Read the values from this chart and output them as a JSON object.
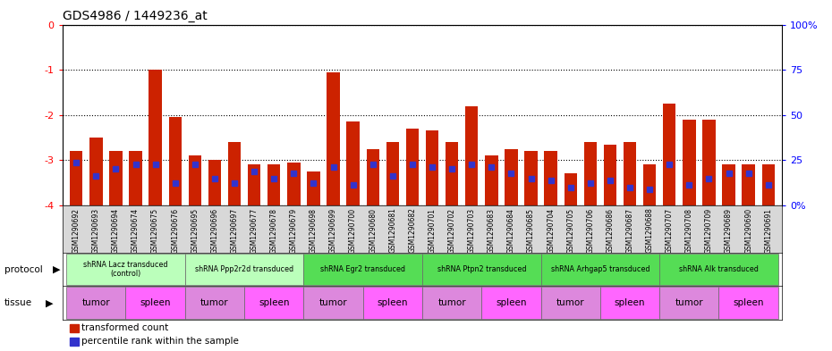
{
  "title": "GDS4986 / 1449236_at",
  "samples": [
    "GSM1290692",
    "GSM1290693",
    "GSM1290694",
    "GSM1290674",
    "GSM1290675",
    "GSM1290676",
    "GSM1290695",
    "GSM1290696",
    "GSM1290697",
    "GSM1290677",
    "GSM1290678",
    "GSM1290679",
    "GSM1290698",
    "GSM1290699",
    "GSM1290700",
    "GSM1290680",
    "GSM1290681",
    "GSM1290682",
    "GSM1290701",
    "GSM1290702",
    "GSM1290703",
    "GSM1290683",
    "GSM1290684",
    "GSM1290685",
    "GSM1290704",
    "GSM1290705",
    "GSM1290706",
    "GSM1290686",
    "GSM1290687",
    "GSM1290688",
    "GSM1290707",
    "GSM1290708",
    "GSM1290709",
    "GSM1290689",
    "GSM1290690",
    "GSM1290691"
  ],
  "red_tops": [
    -2.8,
    -2.5,
    -2.8,
    -2.8,
    -1.0,
    -2.05,
    -2.9,
    -3.0,
    -2.6,
    -3.1,
    -3.1,
    -3.05,
    -3.25,
    -1.05,
    -2.15,
    -2.75,
    -2.6,
    -2.3,
    -2.35,
    -2.6,
    -1.8,
    -2.9,
    -2.75,
    -2.8,
    -2.8,
    -3.3,
    -2.6,
    -2.65,
    -2.6,
    -3.1,
    -1.75,
    -2.1,
    -2.1,
    -3.1,
    -3.1,
    -3.1
  ],
  "blue_positions": [
    -3.05,
    -3.35,
    -3.2,
    -3.1,
    -3.1,
    -3.5,
    -3.1,
    -3.4,
    -3.5,
    -3.25,
    -3.4,
    -3.3,
    -3.5,
    -3.15,
    -3.55,
    -3.1,
    -3.35,
    -3.1,
    -3.15,
    -3.2,
    -3.1,
    -3.15,
    -3.3,
    -3.4,
    -3.45,
    -3.6,
    -3.5,
    -3.45,
    -3.6,
    -3.65,
    -3.1,
    -3.55,
    -3.4,
    -3.3,
    -3.3,
    -3.55
  ],
  "ylim": [
    -4.0,
    0.0
  ],
  "yticks": [
    0,
    -1,
    -2,
    -3,
    -4
  ],
  "right_yticks": [
    0,
    25,
    50,
    75,
    100
  ],
  "right_yticklabels": [
    "0%",
    "25",
    "50",
    "75",
    "100%"
  ],
  "bar_color": "#cc2200",
  "blue_color": "#3333cc",
  "protocols": [
    {
      "label": "shRNA Lacz transduced\n(control)",
      "start": 0,
      "end": 5,
      "color": "#bbffbb"
    },
    {
      "label": "shRNA Ppp2r2d transduced",
      "start": 6,
      "end": 11,
      "color": "#bbffbb"
    },
    {
      "label": "shRNA Egr2 transduced",
      "start": 12,
      "end": 17,
      "color": "#55dd55"
    },
    {
      "label": "shRNA Ptpn2 transduced",
      "start": 18,
      "end": 23,
      "color": "#55dd55"
    },
    {
      "label": "shRNA Arhgap5 transduced",
      "start": 24,
      "end": 29,
      "color": "#55dd55"
    },
    {
      "label": "shRNA Alk transduced",
      "start": 30,
      "end": 35,
      "color": "#55dd55"
    }
  ],
  "tissues": [
    {
      "label": "tumor",
      "start": 0,
      "end": 2,
      "color": "#dd88dd"
    },
    {
      "label": "spleen",
      "start": 3,
      "end": 5,
      "color": "#ff66ff"
    },
    {
      "label": "tumor",
      "start": 6,
      "end": 8,
      "color": "#dd88dd"
    },
    {
      "label": "spleen",
      "start": 9,
      "end": 11,
      "color": "#ff66ff"
    },
    {
      "label": "tumor",
      "start": 12,
      "end": 14,
      "color": "#dd88dd"
    },
    {
      "label": "spleen",
      "start": 15,
      "end": 17,
      "color": "#ff66ff"
    },
    {
      "label": "tumor",
      "start": 18,
      "end": 20,
      "color": "#dd88dd"
    },
    {
      "label": "spleen",
      "start": 21,
      "end": 23,
      "color": "#ff66ff"
    },
    {
      "label": "tumor",
      "start": 24,
      "end": 26,
      "color": "#dd88dd"
    },
    {
      "label": "spleen",
      "start": 27,
      "end": 29,
      "color": "#ff66ff"
    },
    {
      "label": "tumor",
      "start": 30,
      "end": 32,
      "color": "#dd88dd"
    },
    {
      "label": "spleen",
      "start": 33,
      "end": 35,
      "color": "#ff66ff"
    }
  ],
  "legend_items": [
    {
      "label": "transformed count",
      "color": "#cc2200"
    },
    {
      "label": "percentile rank within the sample",
      "color": "#3333cc"
    }
  ],
  "fig_width": 9.3,
  "fig_height": 3.93,
  "dpi": 100
}
